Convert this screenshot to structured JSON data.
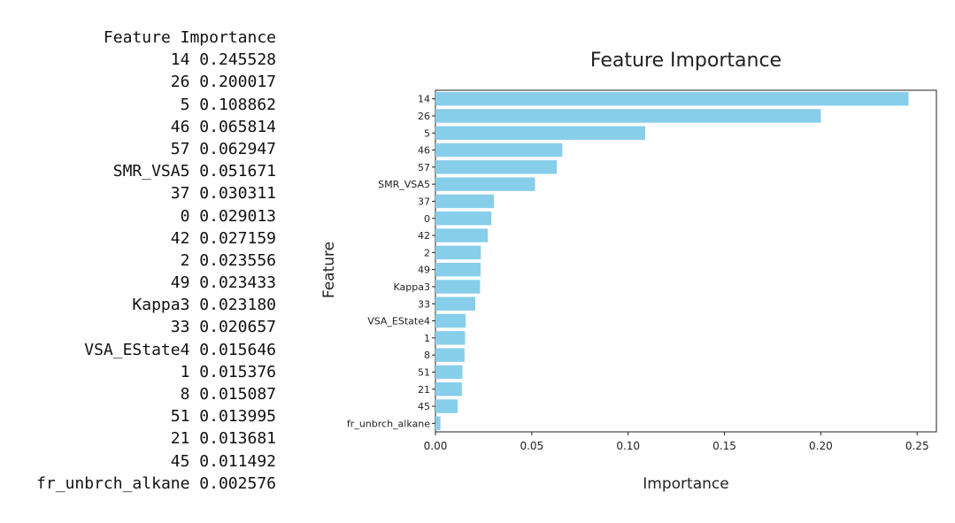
{
  "table": {
    "header": "Feature Importance",
    "rows": [
      {
        "feature": "14",
        "importance": "0.245528"
      },
      {
        "feature": "26",
        "importance": "0.200017"
      },
      {
        "feature": "5",
        "importance": "0.108862"
      },
      {
        "feature": "46",
        "importance": "0.065814"
      },
      {
        "feature": "57",
        "importance": "0.062947"
      },
      {
        "feature": "SMR_VSA5",
        "importance": "0.051671"
      },
      {
        "feature": "37",
        "importance": "0.030311"
      },
      {
        "feature": "0",
        "importance": "0.029013"
      },
      {
        "feature": "42",
        "importance": "0.027159"
      },
      {
        "feature": "2",
        "importance": "0.023556"
      },
      {
        "feature": "49",
        "importance": "0.023433"
      },
      {
        "feature": "Kappa3",
        "importance": "0.023180"
      },
      {
        "feature": "33",
        "importance": "0.020657"
      },
      {
        "feature": "VSA_EState4",
        "importance": "0.015646"
      },
      {
        "feature": "1",
        "importance": "0.015376"
      },
      {
        "feature": "8",
        "importance": "0.015087"
      },
      {
        "feature": "51",
        "importance": "0.013995"
      },
      {
        "feature": "21",
        "importance": "0.013681"
      },
      {
        "feature": "45",
        "importance": "0.011492"
      },
      {
        "feature": "fr_unbrch_alkane",
        "importance": "0.002576"
      }
    ]
  },
  "chart_data": {
    "type": "bar",
    "orientation": "horizontal",
    "title": "Feature Importance",
    "xlabel": "Importance",
    "ylabel": "Feature",
    "categories": [
      "14",
      "26",
      "5",
      "46",
      "57",
      "SMR_VSA5",
      "37",
      "0",
      "42",
      "2",
      "49",
      "Kappa3",
      "33",
      "VSA_EState4",
      "1",
      "8",
      "51",
      "21",
      "45",
      "fr_unbrch_alkane"
    ],
    "values": [
      0.245528,
      0.200017,
      0.108862,
      0.065814,
      0.062947,
      0.051671,
      0.030311,
      0.029013,
      0.027159,
      0.023556,
      0.023433,
      0.02318,
      0.020657,
      0.015646,
      0.015376,
      0.015087,
      0.013995,
      0.013681,
      0.011492,
      0.002576
    ],
    "xlim": [
      0,
      0.26
    ],
    "xticks": [
      0.0,
      0.05,
      0.1,
      0.15,
      0.2,
      0.25
    ],
    "xtick_labels": [
      "0.00",
      "0.05",
      "0.10",
      "0.15",
      "0.20",
      "0.25"
    ],
    "bar_color": "#87ceeb",
    "grid": false
  }
}
